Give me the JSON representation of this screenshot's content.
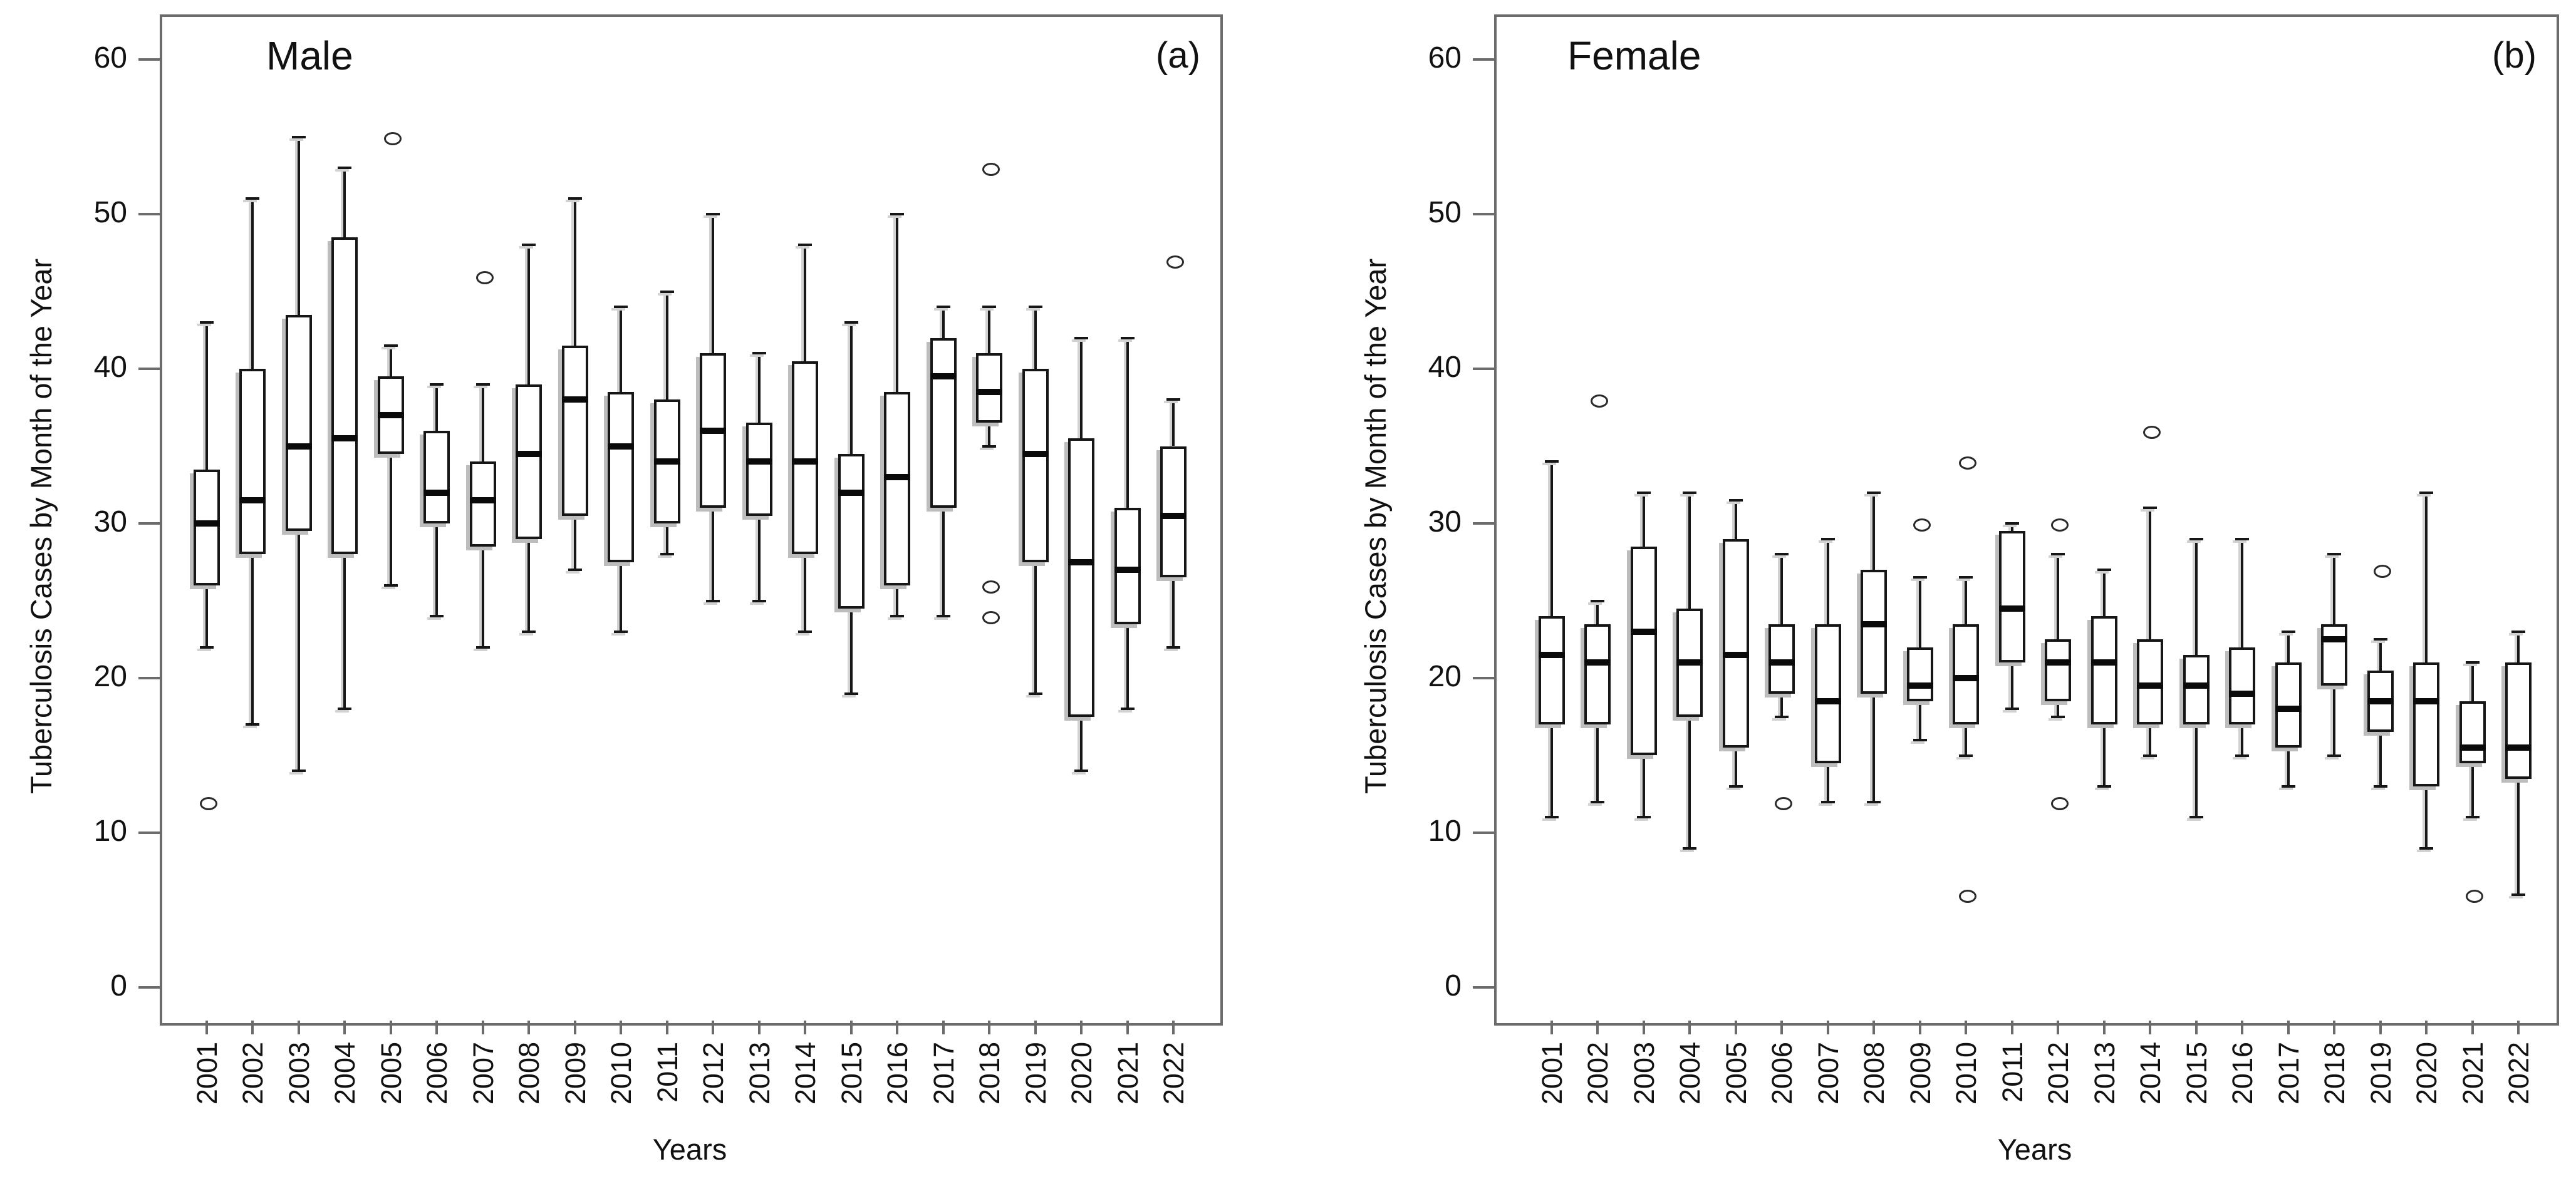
{
  "figure": {
    "background": "#ffffff",
    "colors": {
      "line": "#161616",
      "frame": "#6b6b6b",
      "shadow": "#bdbdbd",
      "text": "#111111"
    },
    "y_axis_label": "Tuberculosis Cases by Month of the Year",
    "x_axis_label": "Years"
  },
  "chart_data": [
    {
      "type": "boxplot",
      "title": "Male",
      "panel_label": "(a)",
      "xlabel": "Years",
      "ylabel": "Tuberculosis Cases by Month of the Year",
      "ylim": [
        0,
        60
      ],
      "y_ticks": [
        0,
        10,
        20,
        30,
        40,
        50,
        60
      ],
      "grid": false,
      "legend": null,
      "categories": [
        "2001",
        "2002",
        "2003",
        "2004",
        "2005",
        "2006",
        "2007",
        "2008",
        "2009",
        "2010",
        "2011",
        "2012",
        "2013",
        "2014",
        "2015",
        "2016",
        "2017",
        "2018",
        "2019",
        "2020",
        "2021",
        "2022"
      ],
      "stats": [
        {
          "year": "2001",
          "whislo": 22,
          "q1": 26,
          "med": 30,
          "q3": 33.5,
          "whishi": 43,
          "fliers": [
            12
          ]
        },
        {
          "year": "2002",
          "whislo": 17,
          "q1": 28,
          "med": 31.5,
          "q3": 40,
          "whishi": 51,
          "fliers": []
        },
        {
          "year": "2003",
          "whislo": 14,
          "q1": 29.5,
          "med": 35,
          "q3": 43.5,
          "whishi": 55,
          "fliers": []
        },
        {
          "year": "2004",
          "whislo": 18,
          "q1": 28,
          "med": 35.5,
          "q3": 48.5,
          "whishi": 53,
          "fliers": []
        },
        {
          "year": "2005",
          "whislo": 26,
          "q1": 34.5,
          "med": 37,
          "q3": 39.5,
          "whishi": 41.5,
          "fliers": [
            55
          ]
        },
        {
          "year": "2006",
          "whislo": 24,
          "q1": 30,
          "med": 32,
          "q3": 36,
          "whishi": 39,
          "fliers": []
        },
        {
          "year": "2007",
          "whislo": 22,
          "q1": 28.5,
          "med": 31.5,
          "q3": 34,
          "whishi": 39,
          "fliers": [
            46
          ]
        },
        {
          "year": "2008",
          "whislo": 23,
          "q1": 29,
          "med": 34.5,
          "q3": 39,
          "whishi": 48,
          "fliers": []
        },
        {
          "year": "2009",
          "whislo": 27,
          "q1": 30.5,
          "med": 38,
          "q3": 41.5,
          "whishi": 51,
          "fliers": []
        },
        {
          "year": "2010",
          "whislo": 23,
          "q1": 27.5,
          "med": 35,
          "q3": 38.5,
          "whishi": 44,
          "fliers": []
        },
        {
          "year": "2011",
          "whislo": 28,
          "q1": 30,
          "med": 34,
          "q3": 38,
          "whishi": 45,
          "fliers": []
        },
        {
          "year": "2012",
          "whislo": 25,
          "q1": 31,
          "med": 36,
          "q3": 41,
          "whishi": 50,
          "fliers": []
        },
        {
          "year": "2013",
          "whislo": 25,
          "q1": 30.5,
          "med": 34,
          "q3": 36.5,
          "whishi": 41,
          "fliers": []
        },
        {
          "year": "2014",
          "whislo": 23,
          "q1": 28,
          "med": 34,
          "q3": 40.5,
          "whishi": 48,
          "fliers": []
        },
        {
          "year": "2015",
          "whislo": 19,
          "q1": 24.5,
          "med": 32,
          "q3": 34.5,
          "whishi": 43,
          "fliers": []
        },
        {
          "year": "2016",
          "whislo": 24,
          "q1": 26,
          "med": 33,
          "q3": 38.5,
          "whishi": 50,
          "fliers": []
        },
        {
          "year": "2017",
          "whislo": 24,
          "q1": 31,
          "med": 39.5,
          "q3": 42,
          "whishi": 44,
          "fliers": []
        },
        {
          "year": "2018",
          "whislo": 35,
          "q1": 36.5,
          "med": 38.5,
          "q3": 41,
          "whishi": 44,
          "fliers": [
            53,
            26,
            24
          ]
        },
        {
          "year": "2019",
          "whislo": 19,
          "q1": 27.5,
          "med": 34.5,
          "q3": 40,
          "whishi": 44,
          "fliers": []
        },
        {
          "year": "2020",
          "whislo": 14,
          "q1": 17.5,
          "med": 27.5,
          "q3": 35.5,
          "whishi": 42,
          "fliers": []
        },
        {
          "year": "2021",
          "whislo": 18,
          "q1": 23.5,
          "med": 27,
          "q3": 31,
          "whishi": 42,
          "fliers": []
        },
        {
          "year": "2022",
          "whislo": 22,
          "q1": 26.5,
          "med": 30.5,
          "q3": 35,
          "whishi": 38,
          "fliers": [
            47
          ]
        }
      ]
    },
    {
      "type": "boxplot",
      "title": "Female",
      "panel_label": "(b)",
      "xlabel": "Years",
      "ylabel": "Tuberculosis Cases by Month of the Year",
      "ylim": [
        0,
        60
      ],
      "y_ticks": [
        0,
        10,
        20,
        30,
        40,
        50,
        60
      ],
      "grid": false,
      "legend": null,
      "categories": [
        "2001",
        "2002",
        "2003",
        "2004",
        "2005",
        "2006",
        "2007",
        "2008",
        "2009",
        "2010",
        "2011",
        "2012",
        "2013",
        "2014",
        "2015",
        "2016",
        "2017",
        "2018",
        "2019",
        "2020",
        "2021",
        "2022"
      ],
      "stats": [
        {
          "year": "2001",
          "whislo": 11,
          "q1": 17,
          "med": 21.5,
          "q3": 24,
          "whishi": 34,
          "fliers": []
        },
        {
          "year": "2002",
          "whislo": 12,
          "q1": 17,
          "med": 21,
          "q3": 23.5,
          "whishi": 25,
          "fliers": [
            38
          ]
        },
        {
          "year": "2003",
          "whislo": 11,
          "q1": 15,
          "med": 23,
          "q3": 28.5,
          "whishi": 32,
          "fliers": []
        },
        {
          "year": "2004",
          "whislo": 9,
          "q1": 17.5,
          "med": 21,
          "q3": 24.5,
          "whishi": 32,
          "fliers": []
        },
        {
          "year": "2005",
          "whislo": 13,
          "q1": 15.5,
          "med": 21.5,
          "q3": 29,
          "whishi": 31.5,
          "fliers": []
        },
        {
          "year": "2006",
          "whislo": 17.5,
          "q1": 19,
          "med": 21,
          "q3": 23.5,
          "whishi": 28,
          "fliers": [
            12
          ]
        },
        {
          "year": "2007",
          "whislo": 12,
          "q1": 14.5,
          "med": 18.5,
          "q3": 23.5,
          "whishi": 29,
          "fliers": []
        },
        {
          "year": "2008",
          "whislo": 12,
          "q1": 19,
          "med": 23.5,
          "q3": 27,
          "whishi": 32,
          "fliers": []
        },
        {
          "year": "2009",
          "whislo": 16,
          "q1": 18.5,
          "med": 19.5,
          "q3": 22,
          "whishi": 26.5,
          "fliers": [
            30
          ]
        },
        {
          "year": "2010",
          "whislo": 15,
          "q1": 17,
          "med": 20,
          "q3": 23.5,
          "whishi": 26.5,
          "fliers": [
            34,
            6
          ]
        },
        {
          "year": "2011",
          "whislo": 18,
          "q1": 21,
          "med": 24.5,
          "q3": 29.5,
          "whishi": 30,
          "fliers": []
        },
        {
          "year": "2012",
          "whislo": 17.5,
          "q1": 18.5,
          "med": 21,
          "q3": 22.5,
          "whishi": 28,
          "fliers": [
            30,
            12
          ]
        },
        {
          "year": "2013",
          "whislo": 13,
          "q1": 17,
          "med": 21,
          "q3": 24,
          "whishi": 27,
          "fliers": []
        },
        {
          "year": "2014",
          "whislo": 15,
          "q1": 17,
          "med": 19.5,
          "q3": 22.5,
          "whishi": 31,
          "fliers": [
            36
          ]
        },
        {
          "year": "2015",
          "whislo": 11,
          "q1": 17,
          "med": 19.5,
          "q3": 21.5,
          "whishi": 29,
          "fliers": []
        },
        {
          "year": "2016",
          "whislo": 15,
          "q1": 17,
          "med": 19,
          "q3": 22,
          "whishi": 29,
          "fliers": []
        },
        {
          "year": "2017",
          "whislo": 13,
          "q1": 15.5,
          "med": 18,
          "q3": 21,
          "whishi": 23,
          "fliers": []
        },
        {
          "year": "2018",
          "whislo": 15,
          "q1": 19.5,
          "med": 22.5,
          "q3": 23.5,
          "whishi": 28,
          "fliers": []
        },
        {
          "year": "2019",
          "whislo": 13,
          "q1": 16.5,
          "med": 18.5,
          "q3": 20.5,
          "whishi": 22.5,
          "fliers": [
            27
          ]
        },
        {
          "year": "2020",
          "whislo": 9,
          "q1": 13,
          "med": 18.5,
          "q3": 21,
          "whishi": 32,
          "fliers": []
        },
        {
          "year": "2021",
          "whislo": 11,
          "q1": 14.5,
          "med": 15.5,
          "q3": 18.5,
          "whishi": 21,
          "fliers": [
            6
          ]
        },
        {
          "year": "2022",
          "whislo": 6,
          "q1": 13.5,
          "med": 15.5,
          "q3": 21,
          "whishi": 23,
          "fliers": []
        }
      ]
    }
  ]
}
